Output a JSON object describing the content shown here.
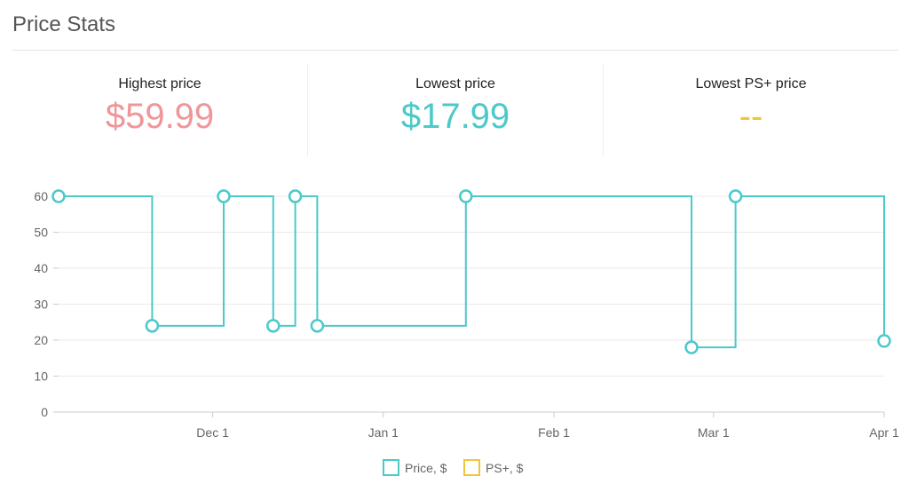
{
  "header": {
    "title": "Price Stats"
  },
  "stats": [
    {
      "label": "Highest price",
      "value": "$59.99",
      "color": "#f0969a"
    },
    {
      "label": "Lowest price",
      "value": "$17.99",
      "color": "#4cc9c9"
    },
    {
      "label": "Lowest PS+ price",
      "value": "--",
      "color": "#f0c53a"
    }
  ],
  "chart_data": {
    "type": "line",
    "step": true,
    "ylim": [
      0,
      60
    ],
    "y_ticks": [
      0,
      10,
      20,
      30,
      40,
      50,
      60
    ],
    "x_ticks": [
      "Dec 1",
      "Jan 1",
      "Feb 1",
      "Mar 1",
      "Apr 1"
    ],
    "x_domain": [
      "2023-11-03",
      "2024-04-01"
    ],
    "grid": true,
    "legend": "bottom",
    "series": [
      {
        "name": "Price, $",
        "color": "#4cc9c9",
        "points": [
          {
            "x": "2023-11-03",
            "y": 59.99
          },
          {
            "x": "2023-11-20",
            "y": 23.99
          },
          {
            "x": "2023-12-03",
            "y": 59.99
          },
          {
            "x": "2023-12-12",
            "y": 23.99
          },
          {
            "x": "2023-12-16",
            "y": 59.99
          },
          {
            "x": "2023-12-20",
            "y": 23.99
          },
          {
            "x": "2024-01-16",
            "y": 59.99
          },
          {
            "x": "2024-02-26",
            "y": 17.99
          },
          {
            "x": "2024-03-05",
            "y": 59.99
          },
          {
            "x": "2024-04-01",
            "y": 19.79
          }
        ]
      },
      {
        "name": "PS+, $",
        "color": "#f0c53a",
        "points": []
      }
    ]
  }
}
